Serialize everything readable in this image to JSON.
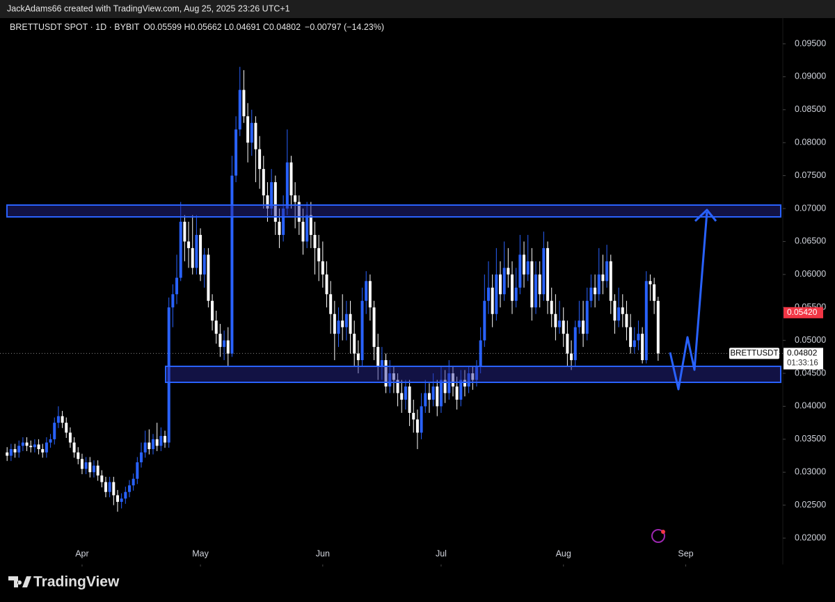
{
  "header": {
    "credit": "JackAdams66 created with TradingView.com, Aug 25, 2025 23:26 UTC+1"
  },
  "brand": "TradingView",
  "chart_data": {
    "type": "candlestick",
    "symbol": "BRETTUSDT SPOT · 1D · BYBIT",
    "ohlc_text": "O0.05599 H0.05662 L0.04691 C0.04802",
    "change_text": "−0.00797 (−14.23%)",
    "up_color": "#2962ff",
    "down_color": "#ffffff",
    "xlim": [
      -1.8,
      196.6
    ],
    "xticks": [
      {
        "value": 19,
        "label": "Apr"
      },
      {
        "value": 49,
        "label": "May"
      },
      {
        "value": 80,
        "label": "Jun"
      },
      {
        "value": 110,
        "label": "Jul"
      },
      {
        "value": 141,
        "label": "Aug"
      },
      {
        "value": 172,
        "label": "Sep"
      }
    ],
    "ylim": [
      0.016,
      0.0989
    ],
    "yticks": [
      {
        "value": 0.02,
        "label": "0.02000"
      },
      {
        "value": 0.025,
        "label": "0.02500"
      },
      {
        "value": 0.03,
        "label": "0.03000"
      },
      {
        "value": 0.035,
        "label": "0.03500"
      },
      {
        "value": 0.04,
        "label": "0.04000"
      },
      {
        "value": 0.045,
        "label": "0.04500"
      },
      {
        "value": 0.05,
        "label": "0.05000"
      },
      {
        "value": 0.055,
        "label": "0.05500"
      },
      {
        "value": 0.06,
        "label": "0.06000"
      },
      {
        "value": 0.065,
        "label": "0.06500"
      },
      {
        "value": 0.07,
        "label": "0.07000"
      },
      {
        "value": 0.075,
        "label": "0.07500"
      },
      {
        "value": 0.08,
        "label": "0.08000"
      },
      {
        "value": 0.085,
        "label": "0.08500"
      },
      {
        "value": 0.09,
        "label": "0.09000"
      },
      {
        "value": 0.095,
        "label": "0.09500"
      }
    ],
    "last_price": {
      "symbol": "BRETTUSDT",
      "value": 0.04802,
      "label": "0.04802",
      "countdown": "01:33:16"
    },
    "ma_tag": {
      "value": 0.0542,
      "label": "0.05420",
      "color": "#f23645"
    },
    "open": [
      0.033,
      0.0325,
      0.0335,
      0.033,
      0.034,
      0.0345,
      0.034,
      0.0338,
      0.0342,
      0.0335,
      0.033,
      0.0345,
      0.035,
      0.0375,
      0.0385,
      0.0375,
      0.036,
      0.0345,
      0.033,
      0.032,
      0.0305,
      0.0315,
      0.03,
      0.031,
      0.0295,
      0.0285,
      0.027,
      0.0285,
      0.0265,
      0.0255,
      0.026,
      0.027,
      0.028,
      0.029,
      0.0315,
      0.033,
      0.0345,
      0.0335,
      0.035,
      0.034,
      0.0355,
      0.0345,
      0.055,
      0.057,
      0.0595,
      0.068,
      0.065,
      0.064,
      0.061,
      0.066,
      0.06,
      0.063,
      0.056,
      0.053,
      0.051,
      0.049,
      0.05,
      0.048,
      0.075,
      0.082,
      0.088,
      0.084,
      0.08,
      0.083,
      0.079,
      0.076,
      0.072,
      0.07,
      0.074,
      0.068,
      0.066,
      0.07,
      0.077,
      0.072,
      0.071,
      0.068,
      0.065,
      0.069,
      0.066,
      0.064,
      0.062,
      0.06,
      0.057,
      0.054,
      0.051,
      0.053,
      0.052,
      0.054,
      0.051,
      0.048,
      0.047,
      0.056,
      0.059,
      0.055,
      0.049,
      0.046,
      0.047,
      0.043,
      0.045,
      0.044,
      0.042,
      0.041,
      0.043,
      0.039,
      0.038,
      0.036,
      0.04,
      0.042,
      0.041,
      0.043,
      0.04,
      0.044,
      0.042,
      0.045,
      0.043,
      0.041,
      0.044,
      0.043,
      0.045,
      0.044,
      0.046,
      0.05,
      0.056,
      0.058,
      0.054,
      0.06,
      0.057,
      0.061,
      0.06,
      0.056,
      0.058,
      0.063,
      0.06,
      0.062,
      0.055,
      0.06,
      0.057,
      0.064,
      0.056,
      0.054,
      0.052,
      0.053,
      0.051,
      0.048,
      0.047,
      0.052,
      0.053,
      0.051,
      0.056,
      0.058,
      0.057,
      0.06,
      0.059,
      0.062,
      0.056,
      0.053,
      0.055,
      0.054,
      0.052,
      0.049,
      0.05,
      0.051,
      0.047,
      0.059,
      0.0585,
      0.05599
    ],
    "high": [
      0.0338,
      0.0343,
      0.0343,
      0.0348,
      0.0353,
      0.0353,
      0.0348,
      0.035,
      0.035,
      0.0343,
      0.0353,
      0.0358,
      0.0383,
      0.04,
      0.0393,
      0.0383,
      0.0368,
      0.0353,
      0.0338,
      0.0328,
      0.0323,
      0.0323,
      0.0318,
      0.0318,
      0.0303,
      0.0293,
      0.0293,
      0.0293,
      0.0273,
      0.0268,
      0.0278,
      0.0288,
      0.0298,
      0.0323,
      0.0345,
      0.0363,
      0.0365,
      0.0358,
      0.0375,
      0.0368,
      0.0363,
      0.0565,
      0.0585,
      0.063,
      0.071,
      0.069,
      0.068,
      0.069,
      0.069,
      0.067,
      0.064,
      0.064,
      0.057,
      0.0545,
      0.0525,
      0.0515,
      0.052,
      0.078,
      0.084,
      0.0915,
      0.091,
      0.086,
      0.085,
      0.084,
      0.081,
      0.078,
      0.074,
      0.076,
      0.075,
      0.07,
      0.072,
      0.082,
      0.078,
      0.074,
      0.072,
      0.07,
      0.071,
      0.071,
      0.068,
      0.066,
      0.065,
      0.062,
      0.059,
      0.056,
      0.055,
      0.057,
      0.056,
      0.056,
      0.053,
      0.05,
      0.058,
      0.0605,
      0.06,
      0.056,
      0.051,
      0.049,
      0.048,
      0.047,
      0.046,
      0.045,
      0.044,
      0.044,
      0.044,
      0.041,
      0.0395,
      0.042,
      0.044,
      0.0435,
      0.045,
      0.044,
      0.046,
      0.0455,
      0.047,
      0.046,
      0.0445,
      0.0455,
      0.0455,
      0.046,
      0.046,
      0.047,
      0.052,
      0.06,
      0.062,
      0.06,
      0.064,
      0.062,
      0.065,
      0.064,
      0.062,
      0.061,
      0.066,
      0.065,
      0.066,
      0.064,
      0.062,
      0.062,
      0.0665,
      0.065,
      0.058,
      0.057,
      0.056,
      0.055,
      0.053,
      0.05,
      0.053,
      0.056,
      0.056,
      0.058,
      0.06,
      0.06,
      0.064,
      0.063,
      0.0645,
      0.063,
      0.057,
      0.058,
      0.057,
      0.056,
      0.054,
      0.052,
      0.053,
      0.052,
      0.0605,
      0.06,
      0.0595,
      0.05662
    ],
    "low": [
      0.0317,
      0.0317,
      0.0322,
      0.0322,
      0.0332,
      0.0332,
      0.033,
      0.033,
      0.0327,
      0.0322,
      0.0322,
      0.0337,
      0.0342,
      0.0367,
      0.0367,
      0.0352,
      0.0337,
      0.0322,
      0.0312,
      0.0297,
      0.0297,
      0.0292,
      0.0292,
      0.0287,
      0.0277,
      0.0262,
      0.0262,
      0.025,
      0.024,
      0.0245,
      0.0252,
      0.0262,
      0.0272,
      0.0282,
      0.0307,
      0.0322,
      0.0327,
      0.0327,
      0.0332,
      0.0332,
      0.0337,
      0.0337,
      0.052,
      0.0555,
      0.059,
      0.062,
      0.061,
      0.06,
      0.06,
      0.059,
      0.058,
      0.055,
      0.0515,
      0.0495,
      0.0475,
      0.047,
      0.046,
      0.0475,
      0.074,
      0.081,
      0.083,
      0.077,
      0.078,
      0.074,
      0.073,
      0.07,
      0.068,
      0.069,
      0.066,
      0.064,
      0.065,
      0.069,
      0.07,
      0.067,
      0.066,
      0.063,
      0.064,
      0.064,
      0.06,
      0.059,
      0.058,
      0.055,
      0.051,
      0.047,
      0.049,
      0.05,
      0.05,
      0.048,
      0.046,
      0.045,
      0.046,
      0.054,
      0.053,
      0.047,
      0.044,
      0.044,
      0.042,
      0.042,
      0.042,
      0.04,
      0.039,
      0.0395,
      0.037,
      0.036,
      0.0335,
      0.035,
      0.039,
      0.039,
      0.04,
      0.0385,
      0.039,
      0.0405,
      0.041,
      0.0415,
      0.0395,
      0.04,
      0.0415,
      0.042,
      0.0425,
      0.043,
      0.045,
      0.049,
      0.054,
      0.052,
      0.053,
      0.055,
      0.056,
      0.058,
      0.054,
      0.055,
      0.057,
      0.058,
      0.059,
      0.053,
      0.054,
      0.055,
      0.056,
      0.054,
      0.052,
      0.05,
      0.051,
      0.049,
      0.046,
      0.0455,
      0.046,
      0.051,
      0.049,
      0.05,
      0.055,
      0.055,
      0.056,
      0.057,
      0.058,
      0.054,
      0.051,
      0.052,
      0.052,
      0.05,
      0.048,
      0.048,
      0.0485,
      0.0465,
      0.0465,
      0.056,
      0.054,
      0.04691
    ],
    "close": [
      0.0325,
      0.0335,
      0.033,
      0.034,
      0.0345,
      0.034,
      0.0338,
      0.0342,
      0.0335,
      0.033,
      0.0345,
      0.035,
      0.0375,
      0.0385,
      0.0375,
      0.036,
      0.0345,
      0.033,
      0.032,
      0.0305,
      0.0315,
      0.03,
      0.031,
      0.0295,
      0.0285,
      0.027,
      0.0285,
      0.0265,
      0.0255,
      0.026,
      0.027,
      0.028,
      0.029,
      0.0315,
      0.033,
      0.0345,
      0.0335,
      0.035,
      0.034,
      0.0355,
      0.0345,
      0.055,
      0.057,
      0.0595,
      0.068,
      0.065,
      0.064,
      0.061,
      0.066,
      0.06,
      0.063,
      0.056,
      0.053,
      0.051,
      0.049,
      0.05,
      0.048,
      0.075,
      0.082,
      0.088,
      0.084,
      0.08,
      0.083,
      0.079,
      0.076,
      0.072,
      0.07,
      0.074,
      0.068,
      0.066,
      0.07,
      0.077,
      0.072,
      0.071,
      0.068,
      0.065,
      0.069,
      0.066,
      0.064,
      0.062,
      0.06,
      0.057,
      0.054,
      0.051,
      0.053,
      0.052,
      0.054,
      0.051,
      0.048,
      0.047,
      0.056,
      0.059,
      0.055,
      0.049,
      0.046,
      0.047,
      0.043,
      0.045,
      0.044,
      0.042,
      0.041,
      0.043,
      0.039,
      0.038,
      0.036,
      0.04,
      0.042,
      0.041,
      0.043,
      0.04,
      0.044,
      0.042,
      0.045,
      0.043,
      0.041,
      0.044,
      0.043,
      0.045,
      0.044,
      0.046,
      0.05,
      0.056,
      0.058,
      0.054,
      0.06,
      0.057,
      0.061,
      0.06,
      0.056,
      0.058,
      0.063,
      0.06,
      0.062,
      0.055,
      0.06,
      0.057,
      0.064,
      0.056,
      0.054,
      0.052,
      0.053,
      0.051,
      0.048,
      0.047,
      0.052,
      0.053,
      0.051,
      0.056,
      0.058,
      0.057,
      0.06,
      0.059,
      0.062,
      0.056,
      0.053,
      0.055,
      0.054,
      0.052,
      0.049,
      0.05,
      0.051,
      0.047,
      0.059,
      0.0585,
      0.05599,
      0.04802
    ]
  }
}
